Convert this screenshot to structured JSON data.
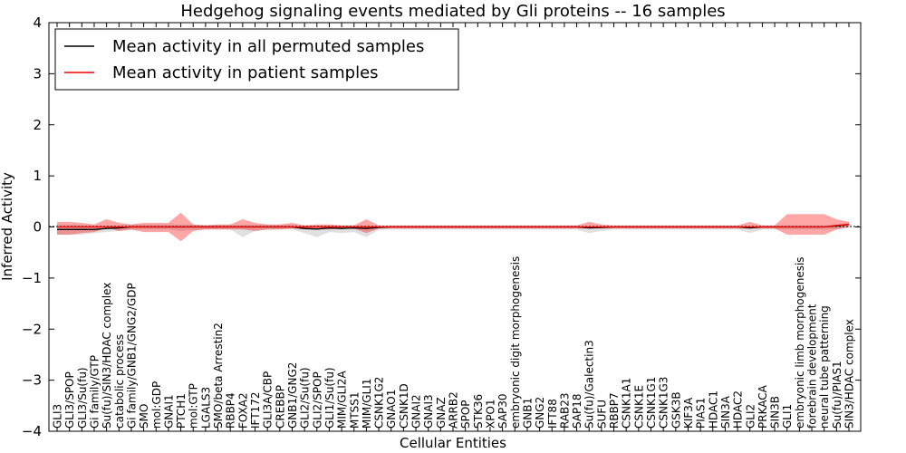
{
  "chart_data": {
    "type": "line",
    "title": "Hedgehog signaling events mediated by Gli proteins -- 16 samples",
    "xlabel": "Cellular Entities",
    "ylabel": "Inferred Activity",
    "ylim": [
      -4,
      4
    ],
    "yticks": [
      -4,
      -3,
      -2,
      -1,
      0,
      1,
      2,
      3,
      4
    ],
    "ytick_labels": [
      "−4",
      "−3",
      "−2",
      "−1",
      "0",
      "1",
      "2",
      "3",
      "4"
    ],
    "legend": {
      "placement": "top-left",
      "entries": [
        {
          "label": "Mean activity in all permuted samples",
          "color": "#000000"
        },
        {
          "label": "Mean activity in patient samples",
          "color": "#ff0000"
        }
      ]
    },
    "categories": [
      "GLI3",
      "GLI3/SPOP",
      "GLI3/Su(fu)",
      "Gi family/GTP",
      "Su(fu)/SIN3/HDAC complex",
      "catabolic process",
      "Gi family/GNB1/GNG2/GDP",
      "SMO",
      "mol:GDP",
      "GNAI1",
      "PTCH1",
      "mol:GTP",
      "LGALS3",
      "SMO/beta Arrestin2",
      "RBBP4",
      "FOXA2",
      "IFT172",
      "GLI3A/CBP",
      "CREBBP",
      "GNB1/GNG2",
      "GLI2/Su(fu)",
      "GLI2/SPOP",
      "GLI1/Su(fu)",
      "MIM/GLI2A",
      "MTSS1",
      "MIM/GLI1",
      "CSNK1G2",
      "GNAO1",
      "CSNK1D",
      "GNAI2",
      "GNAI3",
      "GNAZ",
      "ARRB2",
      "SPOP",
      "STK36",
      "XPO1",
      "SAP30",
      "embryonic digit morphogenesis",
      "GNB1",
      "GNG2",
      "IFT88",
      "RAB23",
      "SAP18",
      "Su(fu)/Galectin3",
      "SUFU",
      "RBBP7",
      "CSNK1A1",
      "CSNK1E",
      "CSNK1G1",
      "CSNK1G3",
      "GSK3B",
      "KIF3A",
      "PIAS1",
      "HDAC1",
      "SIN3A",
      "HDAC2",
      "GLI2",
      "PRKACA",
      "SIN3B",
      "GLI1",
      "embryonic limb morphogenesis",
      "forebrain development",
      "neural tube patterning",
      "Su(fu)/PIAS1",
      "SIN3/HDAC complex"
    ],
    "series": [
      {
        "name": "Mean activity in all permuted samples",
        "color": "#000000",
        "values": [
          -0.05,
          -0.05,
          -0.05,
          -0.05,
          -0.03,
          -0.02,
          0.0,
          0.0,
          0.0,
          0.0,
          0.0,
          0.0,
          0.0,
          0.0,
          0.0,
          0.0,
          0.0,
          0.0,
          0.0,
          0.0,
          -0.03,
          -0.04,
          -0.02,
          -0.03,
          -0.02,
          -0.03,
          -0.01,
          0.0,
          0.0,
          0.0,
          0.0,
          0.0,
          0.0,
          0.0,
          0.0,
          0.0,
          0.0,
          0.0,
          0.0,
          0.0,
          0.0,
          0.0,
          0.0,
          -0.02,
          -0.01,
          0.0,
          0.0,
          0.0,
          0.0,
          0.0,
          0.0,
          0.0,
          0.0,
          0.0,
          0.0,
          0.0,
          -0.02,
          0.0,
          0.0,
          0.0,
          0.0,
          0.0,
          0.0,
          0.02,
          0.05
        ],
        "upper": [
          0.05,
          0.05,
          0.04,
          0.03,
          0.03,
          0.03,
          0.05,
          0.05,
          0.05,
          0.05,
          0.05,
          0.05,
          0.04,
          0.04,
          0.04,
          0.04,
          0.04,
          0.04,
          0.04,
          0.04,
          0.03,
          0.03,
          0.03,
          0.03,
          0.03,
          0.03,
          0.02,
          0.02,
          0.02,
          0.02,
          0.02,
          0.02,
          0.02,
          0.02,
          0.02,
          0.02,
          0.02,
          0.02,
          0.02,
          0.02,
          0.02,
          0.02,
          0.02,
          0.02,
          0.02,
          0.02,
          0.02,
          0.02,
          0.02,
          0.02,
          0.02,
          0.02,
          0.02,
          0.02,
          0.02,
          0.02,
          0.02,
          0.02,
          0.02,
          0.03,
          0.03,
          0.03,
          0.03,
          0.05,
          0.08
        ],
        "lower": [
          -0.15,
          -0.15,
          -0.15,
          -0.12,
          -0.1,
          -0.08,
          -0.06,
          -0.05,
          -0.05,
          -0.05,
          -0.08,
          -0.06,
          -0.05,
          -0.05,
          -0.05,
          -0.2,
          -0.08,
          -0.05,
          -0.05,
          -0.05,
          -0.12,
          -0.2,
          -0.1,
          -0.12,
          -0.1,
          -0.2,
          -0.06,
          -0.05,
          -0.05,
          -0.05,
          -0.05,
          -0.05,
          -0.05,
          -0.05,
          -0.05,
          -0.05,
          -0.05,
          -0.05,
          -0.05,
          -0.05,
          -0.05,
          -0.05,
          -0.05,
          -0.12,
          -0.08,
          -0.05,
          -0.05,
          -0.05,
          -0.05,
          -0.05,
          -0.05,
          -0.05,
          -0.05,
          -0.05,
          -0.05,
          -0.05,
          -0.12,
          -0.05,
          -0.05,
          -0.05,
          -0.05,
          -0.05,
          -0.05,
          -0.05,
          -0.02
        ]
      },
      {
        "name": "Mean activity in patient samples",
        "color": "#ff0000",
        "values": [
          0.0,
          0.0,
          0.0,
          0.0,
          0.0,
          0.0,
          0.0,
          0.0,
          0.0,
          0.0,
          0.0,
          0.0,
          0.0,
          0.0,
          0.0,
          0.0,
          0.0,
          0.0,
          0.0,
          0.0,
          0.0,
          0.0,
          0.0,
          0.0,
          0.0,
          0.0,
          0.0,
          0.0,
          0.0,
          0.0,
          0.0,
          0.0,
          0.0,
          0.0,
          0.0,
          0.0,
          0.0,
          0.0,
          0.0,
          0.0,
          0.0,
          0.0,
          0.0,
          0.0,
          0.0,
          0.0,
          0.0,
          0.0,
          0.0,
          0.0,
          0.0,
          0.0,
          0.0,
          0.0,
          0.0,
          0.0,
          0.0,
          0.0,
          0.0,
          0.0,
          0.0,
          0.0,
          0.0,
          0.03,
          0.05
        ],
        "upper": [
          0.1,
          0.1,
          0.08,
          0.05,
          0.15,
          0.08,
          0.05,
          0.08,
          0.08,
          0.08,
          0.28,
          0.05,
          0.03,
          0.05,
          0.05,
          0.15,
          0.08,
          0.05,
          0.05,
          0.08,
          0.03,
          0.05,
          0.05,
          0.03,
          0.03,
          0.15,
          0.03,
          0.03,
          0.03,
          0.03,
          0.03,
          0.03,
          0.03,
          0.03,
          0.03,
          0.03,
          0.03,
          0.03,
          0.03,
          0.03,
          0.03,
          0.03,
          0.03,
          0.1,
          0.05,
          0.03,
          0.03,
          0.03,
          0.03,
          0.03,
          0.03,
          0.03,
          0.03,
          0.03,
          0.03,
          0.03,
          0.1,
          0.03,
          0.03,
          0.25,
          0.25,
          0.25,
          0.25,
          0.15,
          0.1
        ],
        "lower": [
          -0.15,
          -0.15,
          -0.12,
          -0.1,
          -0.02,
          -0.08,
          -0.05,
          -0.1,
          -0.1,
          -0.1,
          -0.28,
          -0.08,
          -0.05,
          -0.05,
          -0.05,
          -0.05,
          -0.08,
          -0.05,
          -0.05,
          -0.03,
          -0.05,
          -0.05,
          -0.05,
          -0.03,
          -0.03,
          -0.12,
          -0.03,
          -0.03,
          -0.03,
          -0.03,
          -0.03,
          -0.03,
          -0.03,
          -0.03,
          -0.03,
          -0.03,
          -0.03,
          -0.03,
          -0.03,
          -0.03,
          -0.03,
          -0.03,
          -0.03,
          -0.03,
          -0.03,
          -0.03,
          -0.03,
          -0.03,
          -0.03,
          -0.03,
          -0.03,
          -0.03,
          -0.03,
          -0.03,
          -0.03,
          -0.03,
          -0.03,
          -0.03,
          -0.03,
          -0.15,
          -0.15,
          -0.15,
          -0.15,
          -0.05,
          0.0
        ]
      }
    ],
    "zero_reference_line": true
  }
}
